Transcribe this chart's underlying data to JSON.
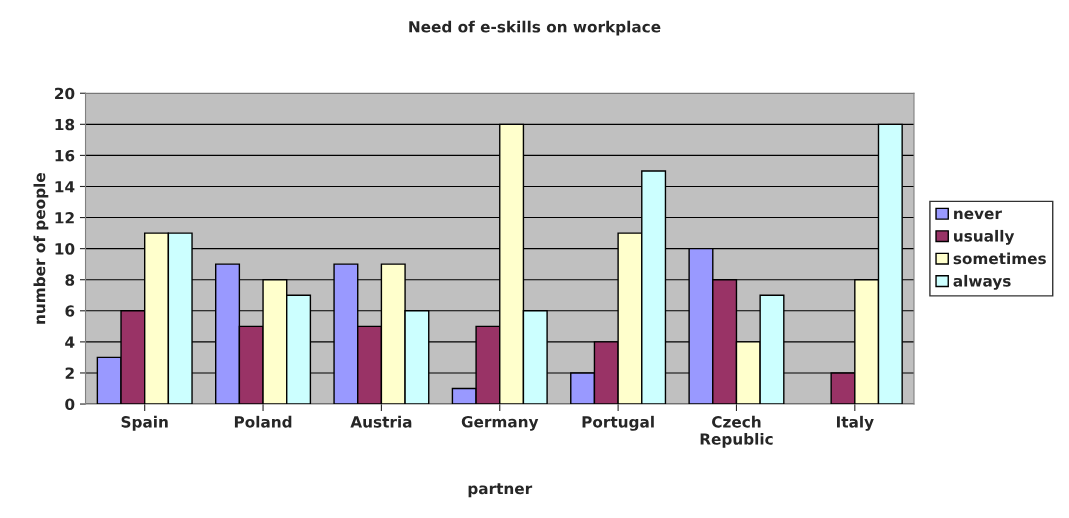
{
  "chart_data": {
    "type": "bar",
    "title": "Need of e-skills on workplace",
    "xlabel": "partner",
    "ylabel": "number of people",
    "categories": [
      "Spain",
      "Poland",
      "Austria",
      "Germany",
      "Portugal",
      "Czech\nRepublic",
      "Italy"
    ],
    "series": [
      {
        "name": "never",
        "color": "#9999ff",
        "values": [
          3,
          9,
          9,
          1,
          2,
          10,
          null
        ]
      },
      {
        "name": "usually",
        "color": "#993366",
        "values": [
          6,
          5,
          5,
          5,
          4,
          8,
          2
        ]
      },
      {
        "name": "sometimes",
        "color": "#ffffcc",
        "values": [
          11,
          8,
          9,
          18,
          11,
          4,
          8
        ]
      },
      {
        "name": "always",
        "color": "#ccffff",
        "values": [
          11,
          7,
          6,
          6,
          15,
          7,
          18
        ]
      }
    ],
    "ylim": [
      0,
      20
    ],
    "yticks": [
      0,
      2,
      4,
      6,
      8,
      10,
      12,
      14,
      16,
      18,
      20
    ],
    "grid": "y",
    "legend": "right"
  }
}
